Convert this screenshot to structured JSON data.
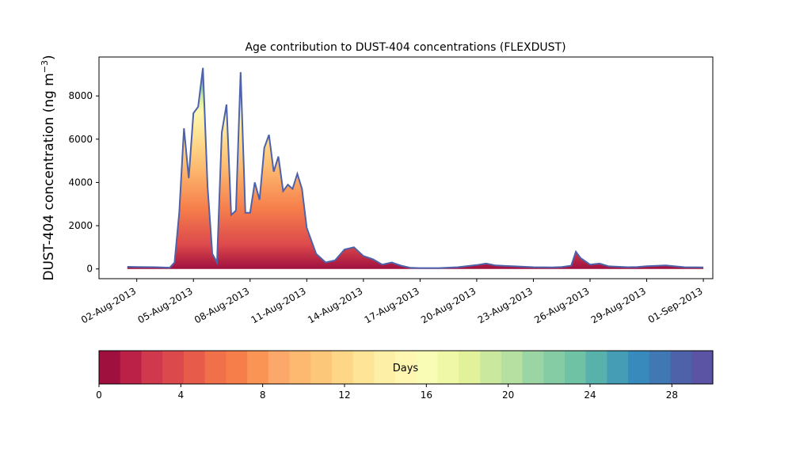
{
  "chart_data": {
    "type": "area",
    "title": "Age contribution to DUST-404 concentrations (FLEXDUST)",
    "ylabel": "DUST-404 concentration (ng m",
    "ylabel_sup": "−3",
    "ylabel_close": ")",
    "ylim": [
      -450,
      9800
    ],
    "xlim": [
      "2013-07-31",
      "2013-09-01 12:00"
    ],
    "yticks": [
      0,
      2000,
      4000,
      6000,
      8000
    ],
    "xticks": [
      "02-Aug-2013",
      "05-Aug-2013",
      "08-Aug-2013",
      "11-Aug-2013",
      "14-Aug-2013",
      "17-Aug-2013",
      "20-Aug-2013",
      "23-Aug-2013",
      "26-Aug-2013",
      "29-Aug-2013",
      "01-Sep-2013"
    ],
    "grid": false,
    "stacked_by": "age in days (0–30), bands in 1-day steps",
    "total_series": {
      "name": "",
      "x": [
        "2013-08-01 12:00",
        "2013-08-02 00:00",
        "2013-08-03 00:00",
        "2013-08-03 18:00",
        "2013-08-04 00:00",
        "2013-08-04 06:00",
        "2013-08-04 12:00",
        "2013-08-04 18:00",
        "2013-08-05 00:00",
        "2013-08-05 06:00",
        "2013-08-05 12:00",
        "2013-08-05 18:00",
        "2013-08-06 00:00",
        "2013-08-06 06:00",
        "2013-08-06 12:00",
        "2013-08-06 18:00",
        "2013-08-07 00:00",
        "2013-08-07 06:00",
        "2013-08-07 12:00",
        "2013-08-07 18:00",
        "2013-08-08 00:00",
        "2013-08-08 06:00",
        "2013-08-08 12:00",
        "2013-08-08 18:00",
        "2013-08-09 00:00",
        "2013-08-09 06:00",
        "2013-08-09 12:00",
        "2013-08-09 18:00",
        "2013-08-10 00:00",
        "2013-08-10 06:00",
        "2013-08-10 12:00",
        "2013-08-10 18:00",
        "2013-08-11 00:00",
        "2013-08-11 12:00",
        "2013-08-12 00:00",
        "2013-08-12 12:00",
        "2013-08-13 00:00",
        "2013-08-13 12:00",
        "2013-08-14 00:00",
        "2013-08-14 12:00",
        "2013-08-15 00:00",
        "2013-08-15 12:00",
        "2013-08-16 00:00",
        "2013-08-16 12:00",
        "2013-08-17 00:00",
        "2013-08-18 00:00",
        "2013-08-19 00:00",
        "2013-08-20 00:00",
        "2013-08-20 12:00",
        "2013-08-21 00:00",
        "2013-08-22 00:00",
        "2013-08-23 00:00",
        "2013-08-24 00:00",
        "2013-08-24 12:00",
        "2013-08-25 00:00",
        "2013-08-25 06:00",
        "2013-08-25 12:00",
        "2013-08-26 00:00",
        "2013-08-26 12:00",
        "2013-08-27 00:00",
        "2013-08-28 00:00",
        "2013-08-28 12:00",
        "2013-08-29 00:00",
        "2013-08-30 00:00",
        "2013-08-31 00:00",
        "2013-09-01 00:00"
      ],
      "values": [
        100,
        90,
        80,
        60,
        300,
        2600,
        6500,
        4200,
        7200,
        7500,
        9300,
        3800,
        700,
        300,
        6300,
        7600,
        2500,
        2700,
        9100,
        2600,
        2600,
        4000,
        3200,
        5600,
        6200,
        4500,
        5200,
        3600,
        3900,
        3700,
        4400,
        3700,
        1900,
        700,
        300,
        400,
        900,
        1000,
        600,
        450,
        200,
        300,
        150,
        50,
        40,
        40,
        80,
        180,
        250,
        160,
        120,
        80,
        70,
        90,
        150,
        800,
        500,
        200,
        250,
        120,
        80,
        90,
        130,
        160,
        80,
        70
      ]
    },
    "colorbar": {
      "label": "Days",
      "ticks": [
        0,
        4,
        8,
        12,
        16,
        20,
        24,
        28
      ],
      "range": [
        0,
        30
      ],
      "colors": [
        "#a0103f",
        "#bb2046",
        "#cf384d",
        "#dc494c",
        "#e75b4a",
        "#f0704a",
        "#f67e4b",
        "#f99455",
        "#fca86a",
        "#fdb96f",
        "#fdc779",
        "#fdd787",
        "#fee497",
        "#feefa6",
        "#fff7b1",
        "#f8fcb4",
        "#eef8a7",
        "#e1f29a",
        "#cbe99e",
        "#b6e0a1",
        "#9cd5a4",
        "#85cca5",
        "#6fc2a4",
        "#58b2ab",
        "#449db4",
        "#3889bc",
        "#3f78b3",
        "#4e62aa",
        "#5b53a4"
      ]
    }
  }
}
